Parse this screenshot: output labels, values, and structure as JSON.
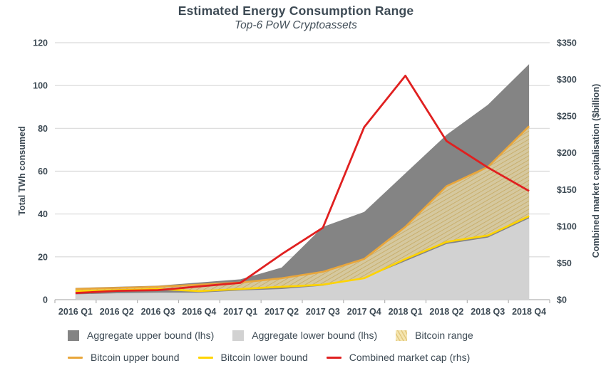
{
  "title": "Estimated Energy Consumption Range",
  "subtitle": "Top-6 PoW Cryptoassets",
  "colors": {
    "text": "#3d4a54",
    "gridline": "#d9d9d9",
    "axis_line": "#b3b3b3",
    "aggregate_upper": "#848484",
    "aggregate_lower": "#d2d2d2",
    "bitcoin_range_base": "#f5e3a9",
    "bitcoin_range_hatch": "#b98f2e",
    "bitcoin_upper": "#e9a63b",
    "bitcoin_lower": "#ffd400",
    "market_cap": "#e02020"
  },
  "chart_data": {
    "type": "area",
    "categories": [
      "2016 Q1",
      "2016 Q2",
      "2016 Q3",
      "2016 Q4",
      "2017 Q1",
      "2017 Q2",
      "2017 Q3",
      "2017 Q4",
      "2018 Q1",
      "2018 Q2",
      "2018 Q3",
      "2018 Q4"
    ],
    "left_axis": {
      "label": "Total TWh consumed",
      "min": 0,
      "max": 120,
      "step": 20,
      "ticks": [
        "0",
        "20",
        "40",
        "60",
        "80",
        "100",
        "120"
      ]
    },
    "right_axis": {
      "label": "Combined market capitalisation ($billion)",
      "min": 0,
      "max": 350,
      "step": 50,
      "ticks": [
        "$0",
        "$50",
        "$100",
        "$150",
        "$200",
        "$250",
        "$300",
        "$350"
      ]
    },
    "grid": "horizontal-only",
    "legend_position": "bottom",
    "series": [
      {
        "name": "Aggregate upper bound (lhs)",
        "type": "area",
        "axis": "left",
        "values": [
          5.5,
          6,
          6.5,
          8,
          9.5,
          15,
          34,
          41,
          59,
          77,
          91,
          110
        ]
      },
      {
        "name": "Aggregate lower bound (lhs)",
        "type": "area",
        "axis": "left",
        "values": [
          2.5,
          3,
          3.3,
          3.3,
          4.3,
          5,
          6.5,
          10,
          18,
          26,
          29,
          38
        ]
      },
      {
        "name": "Bitcoin range",
        "type": "band",
        "axis": "left",
        "upper": [
          5,
          5.5,
          6,
          7,
          8,
          10,
          13,
          19,
          34,
          53,
          62,
          81
        ],
        "lower": [
          4,
          4.5,
          5,
          4,
          5,
          6,
          7,
          10,
          19,
          27,
          30,
          39
        ]
      },
      {
        "name": "Bitcoin upper bound",
        "type": "line",
        "axis": "left",
        "values": [
          5,
          5.5,
          6,
          7,
          8,
          10,
          13,
          19,
          34,
          53,
          62,
          81
        ]
      },
      {
        "name": "Bitcoin lower bound",
        "type": "line",
        "axis": "left",
        "values": [
          4,
          4.5,
          5,
          4,
          5,
          6,
          7,
          10,
          19,
          27,
          30,
          39
        ]
      },
      {
        "name": "Combined market cap (rhs)",
        "type": "line",
        "axis": "right",
        "values": [
          9,
          12,
          13,
          18,
          23,
          62,
          98,
          235,
          305,
          216,
          180,
          148
        ]
      }
    ]
  }
}
